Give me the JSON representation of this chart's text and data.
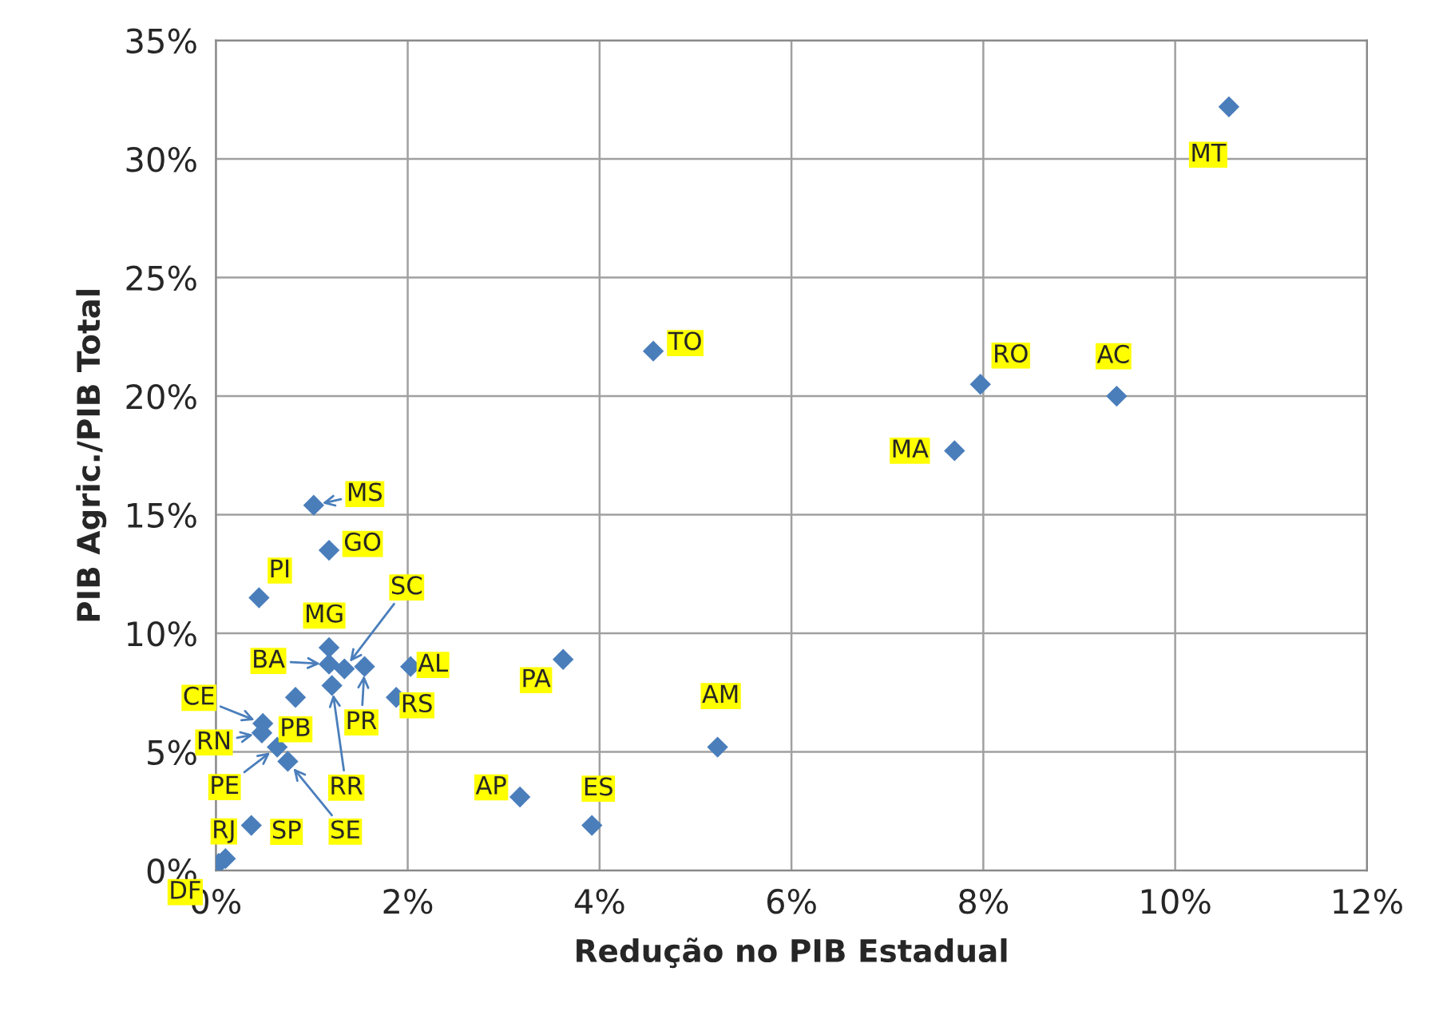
{
  "chart_data": {
    "type": "scatter",
    "xlabel": "Redução no PIB Estadual",
    "ylabel": "PIB Agric./PIB Total",
    "xlim": [
      0,
      12
    ],
    "ylim": [
      0,
      35
    ],
    "xticks": [
      {
        "value": 0,
        "label": "0%"
      },
      {
        "value": 2,
        "label": "2%"
      },
      {
        "value": 4,
        "label": "4%"
      },
      {
        "value": 6,
        "label": "6%"
      },
      {
        "value": 8,
        "label": "8%"
      },
      {
        "value": 10,
        "label": "10%"
      },
      {
        "value": 12,
        "label": "12%"
      }
    ],
    "yticks": [
      {
        "value": 0,
        "label": "0%"
      },
      {
        "value": 5,
        "label": "5%"
      },
      {
        "value": 10,
        "label": "10%"
      },
      {
        "value": 15,
        "label": "15%"
      },
      {
        "value": 20,
        "label": "20%"
      },
      {
        "value": 25,
        "label": "25%"
      },
      {
        "value": 30,
        "label": "30%"
      },
      {
        "value": 35,
        "label": "35%"
      }
    ],
    "grid": true,
    "marker": "diamond",
    "series": [
      {
        "color": "#4a7ebb",
        "x": [
          10.56,
          4.56,
          7.97,
          9.39,
          7.7,
          3.62,
          5.23,
          3.17,
          3.92,
          1.02,
          1.18,
          0.45,
          1.18,
          1.18,
          1.34,
          1.55,
          2.03,
          1.88,
          0.83,
          0.49,
          0.48,
          0.64,
          1.21,
          0.75,
          0.37,
          0.1,
          0.03
        ],
        "values": [
          32.2,
          21.9,
          20.5,
          20.0,
          17.7,
          8.9,
          5.2,
          3.1,
          1.9,
          15.4,
          13.5,
          11.5,
          9.4,
          8.7,
          8.5,
          8.6,
          8.6,
          7.3,
          7.3,
          6.2,
          5.8,
          5.2,
          7.8,
          4.6,
          1.9,
          0.5,
          0.3
        ],
        "value_labels": [
          "MT",
          "TO",
          "RO",
          "AC",
          "MA",
          "PA",
          "AM",
          "AP",
          "ES",
          "MS",
          "GO",
          "PI",
          "MG",
          "BA",
          "SC",
          "PR",
          "AL",
          "RS",
          "PB",
          "CE",
          "RN",
          "PE",
          "RR",
          "SE",
          "SP",
          "RJ",
          "DF"
        ]
      }
    ]
  }
}
